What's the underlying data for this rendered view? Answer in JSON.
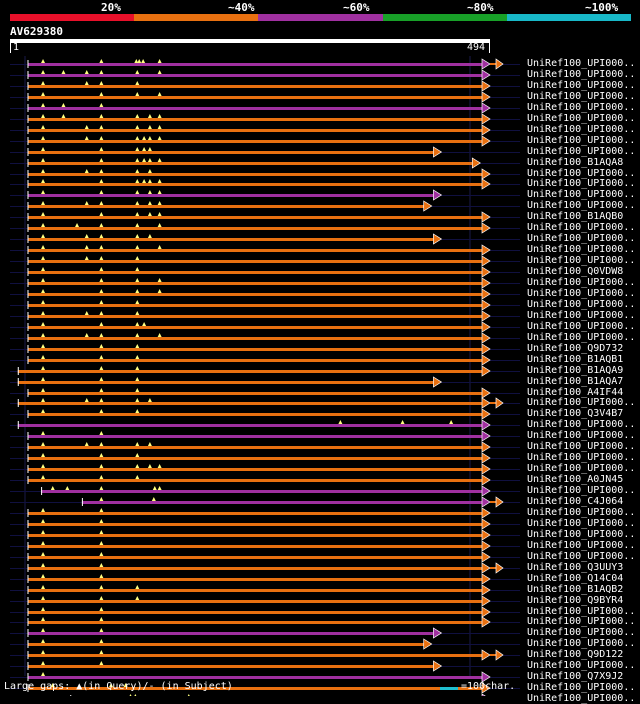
{
  "legend": {
    "labels": [
      "20%",
      "~40%",
      "~60%",
      "~80%",
      "~100%"
    ],
    "colors": [
      "#e8102a",
      "#e87010",
      "#a030a0",
      "#18a028",
      "#18b8c8"
    ]
  },
  "query": {
    "name": "AV629380",
    "start": "1",
    "end": "494",
    "length": 494
  },
  "hits": [
    {
      "name": "UniRef100_UPI000..",
      "color": "purple",
      "start": 18,
      "end": 494,
      "ext": "orange",
      "dots": [
        34,
        94,
        130,
        133,
        137,
        154
      ]
    },
    {
      "name": "UniRef100_UPI000..",
      "color": "purple",
      "start": 18,
      "end": 494,
      "ext": "",
      "dots": [
        34,
        55,
        79,
        94,
        131,
        154
      ]
    },
    {
      "name": "UniRef100_UPI000..",
      "color": "orange",
      "start": 18,
      "end": 494,
      "ext": "",
      "dots": [
        34,
        79,
        94,
        131
      ]
    },
    {
      "name": "UniRef100_UPI000..",
      "color": "orange",
      "start": 18,
      "end": 494,
      "ext": "",
      "dots": [
        34,
        94,
        131,
        154
      ]
    },
    {
      "name": "UniRef100_UPI000..",
      "color": "purple",
      "start": 18,
      "end": 494,
      "ext": "",
      "dots": [
        34,
        55,
        94
      ]
    },
    {
      "name": "UniRef100_UPI000..",
      "color": "orange",
      "start": 18,
      "end": 494,
      "ext": "",
      "dots": [
        34,
        55,
        94,
        131,
        144,
        154
      ]
    },
    {
      "name": "UniRef100_UPI000..",
      "color": "orange",
      "start": 18,
      "end": 494,
      "ext": "",
      "dots": [
        34,
        79,
        94,
        131,
        144,
        154
      ]
    },
    {
      "name": "UniRef100_UPI000..",
      "color": "orange",
      "start": 18,
      "end": 494,
      "ext": "",
      "dots": [
        34,
        79,
        94,
        131,
        138,
        144,
        154
      ]
    },
    {
      "name": "UniRef100_UPI000..",
      "color": "orange",
      "start": 18,
      "end": 444,
      "ext": "",
      "dots": [
        34,
        94,
        131,
        138,
        144
      ]
    },
    {
      "name": "UniRef100_B1AQA8",
      "color": "orange",
      "start": 18,
      "end": 484,
      "ext": "",
      "dots": [
        34,
        94,
        131,
        138,
        144,
        154
      ]
    },
    {
      "name": "UniRef100_UPI000..",
      "color": "orange",
      "start": 18,
      "end": 494,
      "ext": "",
      "dots": [
        34,
        79,
        94,
        131,
        144
      ]
    },
    {
      "name": "UniRef100_UPI000..",
      "color": "orange",
      "start": 18,
      "end": 494,
      "ext": "",
      "dots": [
        34,
        94,
        131,
        138,
        144,
        154
      ]
    },
    {
      "name": "UniRef100_UPI000..",
      "color": "purple",
      "start": 18,
      "end": 444,
      "ext": "",
      "dots": [
        34,
        94,
        131,
        144,
        154
      ]
    },
    {
      "name": "UniRef100_UPI000..",
      "color": "orange",
      "start": 18,
      "end": 434,
      "ext": "",
      "dots": [
        34,
        79,
        94,
        131,
        144,
        154
      ]
    },
    {
      "name": "UniRef100_B1AQB0",
      "color": "orange",
      "start": 18,
      "end": 494,
      "ext": "",
      "dots": [
        34,
        94,
        131,
        144,
        154
      ]
    },
    {
      "name": "UniRef100_UPI000..",
      "color": "orange",
      "start": 18,
      "end": 494,
      "ext": "",
      "dots": [
        34,
        69,
        94,
        131,
        154
      ]
    },
    {
      "name": "UniRef100_UPI000..",
      "color": "orange",
      "start": 18,
      "end": 444,
      "ext": "",
      "dots": [
        34,
        79,
        94,
        131,
        144
      ]
    },
    {
      "name": "UniRef100_UPI000..",
      "color": "orange",
      "start": 18,
      "end": 494,
      "ext": "",
      "dots": [
        34,
        79,
        94,
        131,
        154
      ]
    },
    {
      "name": "UniRef100_UPI000..",
      "color": "orange",
      "start": 18,
      "end": 494,
      "ext": "",
      "dots": [
        34,
        79,
        94,
        131
      ]
    },
    {
      "name": "UniRef100_Q0VDW8",
      "color": "orange",
      "start": 18,
      "end": 494,
      "ext": "",
      "dots": [
        34,
        94,
        131
      ]
    },
    {
      "name": "UniRef100_UPI000..",
      "color": "orange",
      "start": 18,
      "end": 494,
      "ext": "",
      "dots": [
        34,
        94,
        131,
        154
      ]
    },
    {
      "name": "UniRef100_UPI000..",
      "color": "orange",
      "start": 18,
      "end": 494,
      "ext": "",
      "dots": [
        34,
        94,
        131,
        154
      ]
    },
    {
      "name": "UniRef100_UPI000..",
      "color": "orange",
      "start": 18,
      "end": 494,
      "ext": "",
      "dots": [
        34,
        94,
        131
      ]
    },
    {
      "name": "UniRef100_UPI000..",
      "color": "orange",
      "start": 18,
      "end": 494,
      "ext": "",
      "dots": [
        34,
        79,
        94,
        131
      ]
    },
    {
      "name": "UniRef100_UPI000..",
      "color": "orange",
      "start": 18,
      "end": 494,
      "ext": "",
      "dots": [
        34,
        94,
        131,
        138
      ]
    },
    {
      "name": "UniRef100_UPI000..",
      "color": "orange",
      "start": 18,
      "end": 494,
      "ext": "",
      "dots": [
        34,
        79,
        94,
        131,
        154
      ]
    },
    {
      "name": "UniRef100_Q9D732",
      "color": "orange",
      "start": 18,
      "end": 494,
      "ext": "",
      "dots": [
        34,
        94,
        131
      ]
    },
    {
      "name": "UniRef100_B1AQB1",
      "color": "orange",
      "start": 18,
      "end": 494,
      "ext": "",
      "dots": [
        34,
        94,
        131
      ]
    },
    {
      "name": "UniRef100_B1AQA9",
      "color": "orange",
      "start": 8,
      "end": 494,
      "ext": "",
      "dots": [
        34,
        94,
        131
      ]
    },
    {
      "name": "UniRef100_B1AQA7",
      "color": "orange",
      "start": 8,
      "end": 444,
      "ext": "",
      "dots": [
        34,
        94,
        131
      ]
    },
    {
      "name": "UniRef100_A4IF44",
      "color": "orange",
      "start": 18,
      "end": 494,
      "ext": "",
      "dots": [
        34,
        94,
        131
      ]
    },
    {
      "name": "UniRef100_UPI000..",
      "color": "orange",
      "start": 8,
      "end": 494,
      "ext": "orange",
      "dots": [
        34,
        79,
        94,
        131,
        144
      ]
    },
    {
      "name": "UniRef100_Q3V4B7",
      "color": "orange",
      "start": 18,
      "end": 494,
      "ext": "",
      "dots": [
        34,
        94,
        131
      ]
    },
    {
      "name": "UniRef100_UPI000..",
      "color": "purple",
      "start": 8,
      "end": 494,
      "ext": "",
      "dots": [
        340,
        404,
        454
      ]
    },
    {
      "name": "UniRef100_UPI000..",
      "color": "purple",
      "start": 18,
      "end": 494,
      "ext": "",
      "dots": [
        34,
        94
      ]
    },
    {
      "name": "UniRef100_UPI000..",
      "color": "orange",
      "start": 18,
      "end": 494,
      "ext": "",
      "dots": [
        34,
        79,
        94,
        131,
        144
      ]
    },
    {
      "name": "UniRef100_UPI000..",
      "color": "orange",
      "start": 18,
      "end": 494,
      "ext": "",
      "dots": [
        34,
        94,
        131
      ]
    },
    {
      "name": "UniRef100_UPI000..",
      "color": "orange",
      "start": 18,
      "end": 494,
      "ext": "",
      "dots": [
        34,
        94,
        131,
        144,
        154
      ]
    },
    {
      "name": "UniRef100_A0JN45",
      "color": "orange",
      "start": 18,
      "end": 494,
      "ext": "",
      "dots": [
        34,
        94,
        131
      ]
    },
    {
      "name": "UniRef100_UPI000..",
      "color": "purple",
      "start": 32,
      "end": 494,
      "ext": "",
      "dots": [
        44,
        59,
        94,
        149,
        154
      ]
    },
    {
      "name": "UniRef100_C4J064",
      "color": "purple",
      "start": 74,
      "end": 494,
      "ext": "orange",
      "dots": [
        94,
        148
      ]
    },
    {
      "name": "UniRef100_UPI000..",
      "color": "orange",
      "start": 18,
      "end": 494,
      "ext": "",
      "dots": [
        34,
        94
      ]
    },
    {
      "name": "UniRef100_UPI000..",
      "color": "orange",
      "start": 18,
      "end": 494,
      "ext": "",
      "dots": [
        34,
        94
      ]
    },
    {
      "name": "UniRef100_UPI000..",
      "color": "orange",
      "start": 18,
      "end": 494,
      "ext": "",
      "dots": [
        34,
        94
      ]
    },
    {
      "name": "UniRef100_UPI000..",
      "color": "orange",
      "start": 18,
      "end": 494,
      "ext": "",
      "dots": [
        34,
        94
      ]
    },
    {
      "name": "UniRef100_UPI000..",
      "color": "orange",
      "start": 18,
      "end": 494,
      "ext": "",
      "dots": [
        34,
        94
      ]
    },
    {
      "name": "UniRef100_Q3UUY3",
      "color": "orange",
      "start": 18,
      "end": 494,
      "ext": "orange",
      "dots": [
        34,
        94
      ]
    },
    {
      "name": "UniRef100_Q14C04",
      "color": "orange",
      "start": 18,
      "end": 494,
      "ext": "",
      "dots": [
        34,
        94
      ]
    },
    {
      "name": "UniRef100_B1AQB2",
      "color": "orange",
      "start": 18,
      "end": 494,
      "ext": "",
      "dots": [
        34,
        94,
        131
      ]
    },
    {
      "name": "UniRef100_Q9BYR4",
      "color": "orange",
      "start": 18,
      "end": 494,
      "ext": "",
      "dots": [
        34,
        94,
        131
      ]
    },
    {
      "name": "UniRef100_UPI000..",
      "color": "orange",
      "start": 18,
      "end": 494,
      "ext": "",
      "dots": [
        34,
        94
      ]
    },
    {
      "name": "UniRef100_UPI000..",
      "color": "orange",
      "start": 18,
      "end": 494,
      "ext": "",
      "dots": [
        34,
        94
      ]
    },
    {
      "name": "UniRef100_UPI000..",
      "color": "purple",
      "start": 18,
      "end": 444,
      "ext": "",
      "dots": [
        34,
        94
      ]
    },
    {
      "name": "UniRef100_UPI000..",
      "color": "orange",
      "start": 18,
      "end": 434,
      "ext": "",
      "dots": [
        34,
        94
      ]
    },
    {
      "name": "UniRef100_Q9D122",
      "color": "orange",
      "start": 18,
      "end": 494,
      "ext": "orange",
      "dots": [
        34,
        94
      ]
    },
    {
      "name": "UniRef100_UPI000..",
      "color": "orange",
      "start": 18,
      "end": 444,
      "ext": "",
      "dots": [
        34,
        94
      ]
    },
    {
      "name": "UniRef100_Q7X9J2",
      "color": "purple",
      "start": 18,
      "end": 494,
      "ext": "",
      "dots": [
        34
      ]
    },
    {
      "name": "UniRef100_UPI000..",
      "color": "orange",
      "start": 18,
      "end": 494,
      "ext": "",
      "dots": [
        44,
        104,
        119
      ]
    },
    {
      "name": "UniRef100_UPI000..",
      "color": "purple",
      "start": 62,
      "end": 494,
      "ext": "",
      "dots": [
        124,
        129,
        184
      ]
    }
  ],
  "footer": {
    "left": "Large gaps: ▲(in Query)/- (in Subject)",
    "right": "=100char."
  }
}
